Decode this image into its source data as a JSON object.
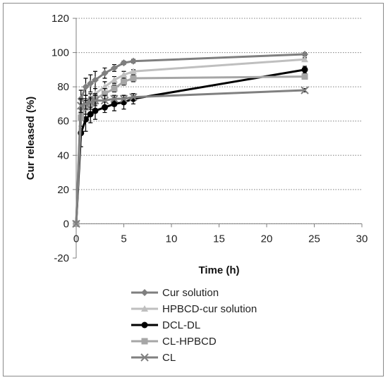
{
  "chart_data": {
    "type": "line",
    "title": "",
    "xlabel": "Time (h)",
    "ylabel": "Cur released (%)",
    "xlim": [
      0,
      30
    ],
    "ylim": [
      -20,
      120
    ],
    "xticks": [
      0,
      5,
      10,
      15,
      20,
      25,
      30
    ],
    "yticks": [
      -20,
      0,
      20,
      40,
      60,
      80,
      100,
      120
    ],
    "grid": "horizontal dotted",
    "legend_position": "bottom",
    "series": [
      {
        "name": "Cur solution",
        "color": "#7f7f7f",
        "marker": "diamond",
        "x": [
          0,
          0.5,
          1,
          1.5,
          2,
          3,
          4,
          5,
          6,
          24
        ],
        "y": [
          0,
          73,
          80,
          82,
          84,
          88,
          91,
          94,
          95,
          99
        ],
        "err": [
          0,
          5,
          5,
          5,
          5,
          3,
          2,
          1,
          1,
          1
        ]
      },
      {
        "name": "HPBCD-cur solution",
        "color": "#bfbfbf",
        "marker": "triangle",
        "x": [
          0,
          0.5,
          1,
          1.5,
          2,
          3,
          4,
          5,
          6,
          24
        ],
        "y": [
          0,
          66,
          71,
          73,
          76,
          80,
          84,
          87,
          89,
          96
        ],
        "err": [
          0,
          4,
          4,
          3,
          3,
          3,
          2,
          2,
          1,
          1
        ]
      },
      {
        "name": "DCL-DL",
        "color": "#000000",
        "marker": "circle",
        "x": [
          0,
          0.5,
          1,
          1.5,
          2,
          3,
          4,
          5,
          6,
          24
        ],
        "y": [
          0,
          53,
          61,
          64,
          66,
          68,
          70,
          71,
          73,
          90
        ],
        "err": [
          0,
          8,
          7,
          5,
          5,
          3,
          4,
          4,
          3,
          2
        ]
      },
      {
        "name": "CL-HPBCD",
        "color": "#a6a6a6",
        "marker": "square",
        "x": [
          0,
          0.5,
          1,
          1.5,
          2,
          3,
          4,
          5,
          6,
          24
        ],
        "y": [
          0,
          62,
          68,
          70,
          73,
          76,
          79,
          83,
          85,
          86
        ],
        "err": [
          0,
          5,
          4,
          3,
          3,
          3,
          2,
          2,
          2,
          1
        ]
      },
      {
        "name": "CL",
        "color": "#808080",
        "marker": "x",
        "x": [
          0,
          0.5,
          1,
          1.5,
          2,
          3,
          4,
          5,
          6,
          24
        ],
        "y": [
          0,
          69,
          70,
          71,
          72,
          72,
          73,
          73,
          74,
          78
        ],
        "err": [
          0,
          4,
          3,
          3,
          3,
          3,
          2,
          2,
          2,
          1
        ]
      }
    ]
  }
}
